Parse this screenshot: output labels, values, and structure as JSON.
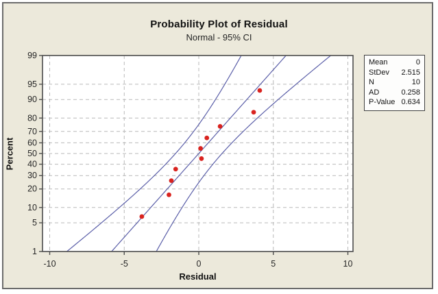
{
  "chart_data": {
    "type": "scatter",
    "variant": "normal-probability-plot",
    "title": "Probability Plot of Residual",
    "subtitle": "Normal - 95% CI",
    "xlabel": "Residual",
    "ylabel": "Percent",
    "x_ticks": [
      -10,
      -5,
      0,
      5,
      10
    ],
    "y_ticks": [
      1,
      5,
      10,
      20,
      30,
      40,
      50,
      60,
      70,
      80,
      90,
      95,
      99
    ],
    "y_scale": "probit",
    "y_range_percent": [
      1,
      99
    ],
    "xlim": [
      -10.5,
      10.35
    ],
    "grid": true,
    "points": [
      {
        "residual": -3.82,
        "percent": 6.73
      },
      {
        "residual": -2.0,
        "percent": 16.35
      },
      {
        "residual": -1.84,
        "percent": 25.96
      },
      {
        "residual": -1.55,
        "percent": 35.58
      },
      {
        "residual": 0.18,
        "percent": 45.19
      },
      {
        "residual": 0.12,
        "percent": 54.81
      },
      {
        "residual": 0.54,
        "percent": 64.42
      },
      {
        "residual": 1.43,
        "percent": 74.04
      },
      {
        "residual": 3.68,
        "percent": 83.65
      },
      {
        "residual": 4.09,
        "percent": 93.27
      }
    ],
    "fit": {
      "mean": 0,
      "stdev": 2.515,
      "n": 10,
      "ci": "95%",
      "ci_multiplier": 1.96
    },
    "legend_position": "outside-right"
  },
  "stats_panel": {
    "rows": [
      {
        "label": "Mean",
        "value": "0"
      },
      {
        "label": "StDev",
        "value": "2.515"
      },
      {
        "label": "N",
        "value": "10"
      },
      {
        "label": "AD",
        "value": "0.258"
      },
      {
        "label": "P-Value",
        "value": "0.634"
      }
    ]
  },
  "colors": {
    "figure_bg": "#ece9db",
    "figure_border": "#6b6b6b",
    "plot_bg": "#ffffff",
    "grid": "#b9b9b9",
    "frame": "#4d4d4d",
    "tick_text": "#262626",
    "line": "#5a5ea8",
    "point": "#d9231f",
    "stats_bg": "#fdfdfc",
    "stats_border": "#3f3f3f"
  }
}
